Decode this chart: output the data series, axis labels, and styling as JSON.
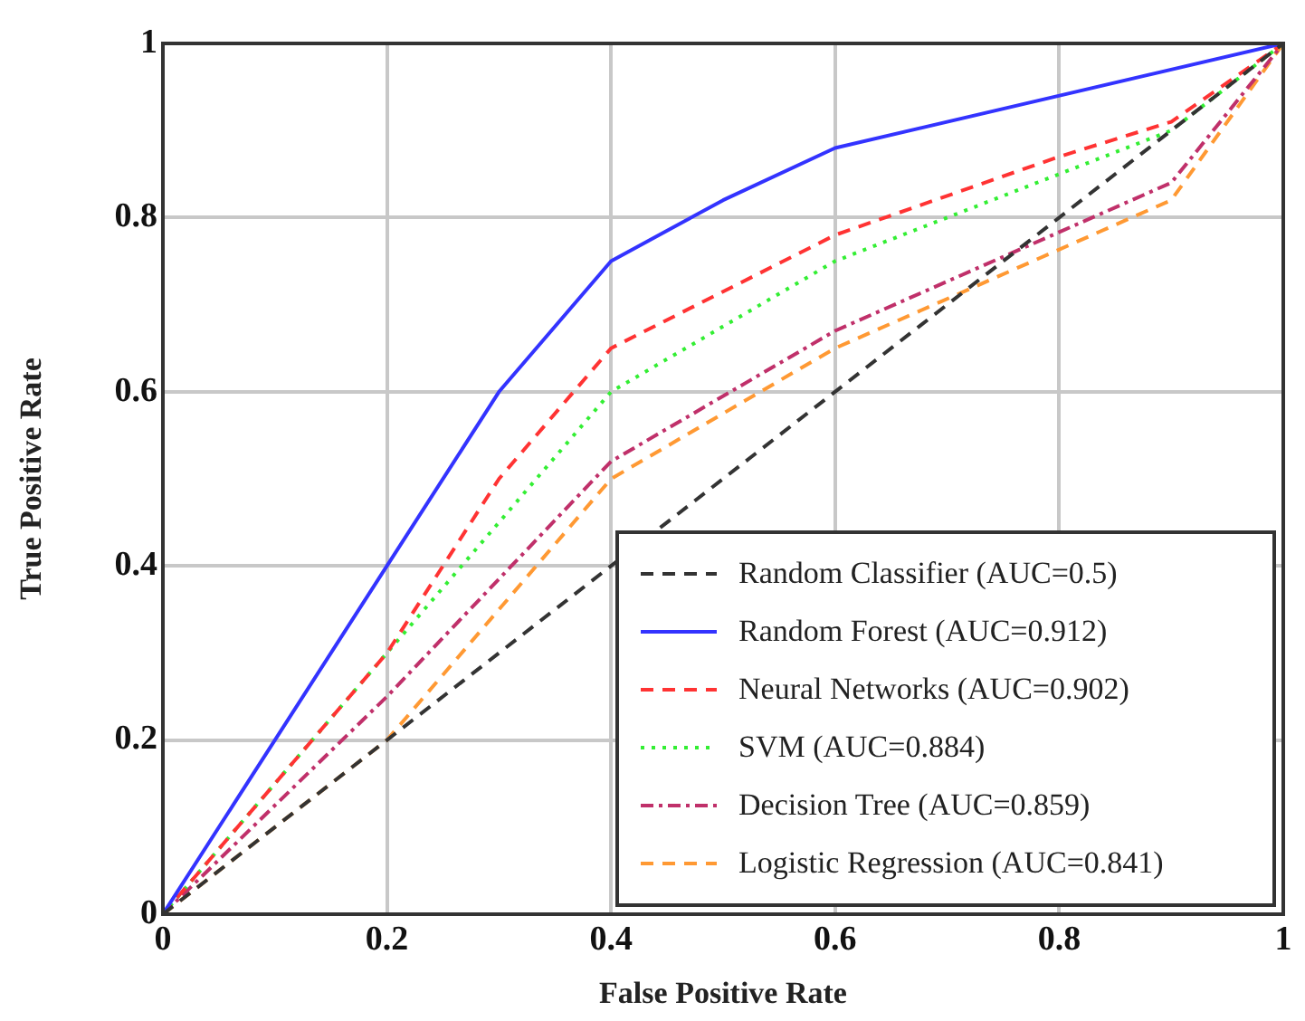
{
  "chart_data": {
    "type": "line",
    "xlabel": "False Positive Rate",
    "ylabel": "True Positive Rate",
    "xlim": [
      0,
      1
    ],
    "ylim": [
      0,
      1
    ],
    "xticks": [
      0,
      0.2,
      0.4,
      0.6,
      0.8,
      1
    ],
    "yticks": [
      0,
      0.2,
      0.4,
      0.6,
      0.8,
      1
    ],
    "grid": true,
    "legend": "bottom right",
    "marker": "none",
    "series": [
      {
        "name": "Random Classifier (AUC=0.5)",
        "color": "#333333",
        "line_style": "dashed",
        "x": [
          0,
          1
        ],
        "values": [
          0,
          1
        ]
      },
      {
        "name": "Random Forest (AUC=0.912)",
        "color": "#3333ff",
        "line_style": "solid",
        "x": [
          0,
          0.2,
          0.3,
          0.4,
          0.5,
          0.6,
          1
        ],
        "values": [
          0,
          0.4,
          0.6,
          0.75,
          0.82,
          0.88,
          1
        ]
      },
      {
        "name": "Neural Networks (AUC=0.902)",
        "color": "#ff3333",
        "line_style": "dashed",
        "x": [
          0,
          0.2,
          0.3,
          0.4,
          0.6,
          0.8,
          0.9,
          1
        ],
        "values": [
          0,
          0.3,
          0.5,
          0.65,
          0.78,
          0.87,
          0.91,
          1
        ]
      },
      {
        "name": "SVM (AUC=0.884)",
        "color": "#33ee33",
        "line_style": "dotted",
        "x": [
          0,
          0.3,
          0.4,
          0.6,
          0.9,
          1
        ],
        "values": [
          0,
          0.45,
          0.6,
          0.75,
          0.9,
          1
        ]
      },
      {
        "name": "Decision Tree (AUC=0.859)",
        "color": "#c0306a",
        "line_style": "dashdot",
        "x": [
          0,
          0.2,
          0.4,
          0.6,
          0.9,
          1
        ],
        "values": [
          0,
          0.25,
          0.52,
          0.67,
          0.84,
          1
        ]
      },
      {
        "name": "Logistic Regression (AUC=0.841)",
        "color": "#ff9933",
        "line_style": "dashed",
        "x": [
          0,
          0.2,
          0.4,
          0.6,
          0.9,
          1
        ],
        "values": [
          0,
          0.2,
          0.5,
          0.65,
          0.82,
          1
        ]
      }
    ]
  }
}
